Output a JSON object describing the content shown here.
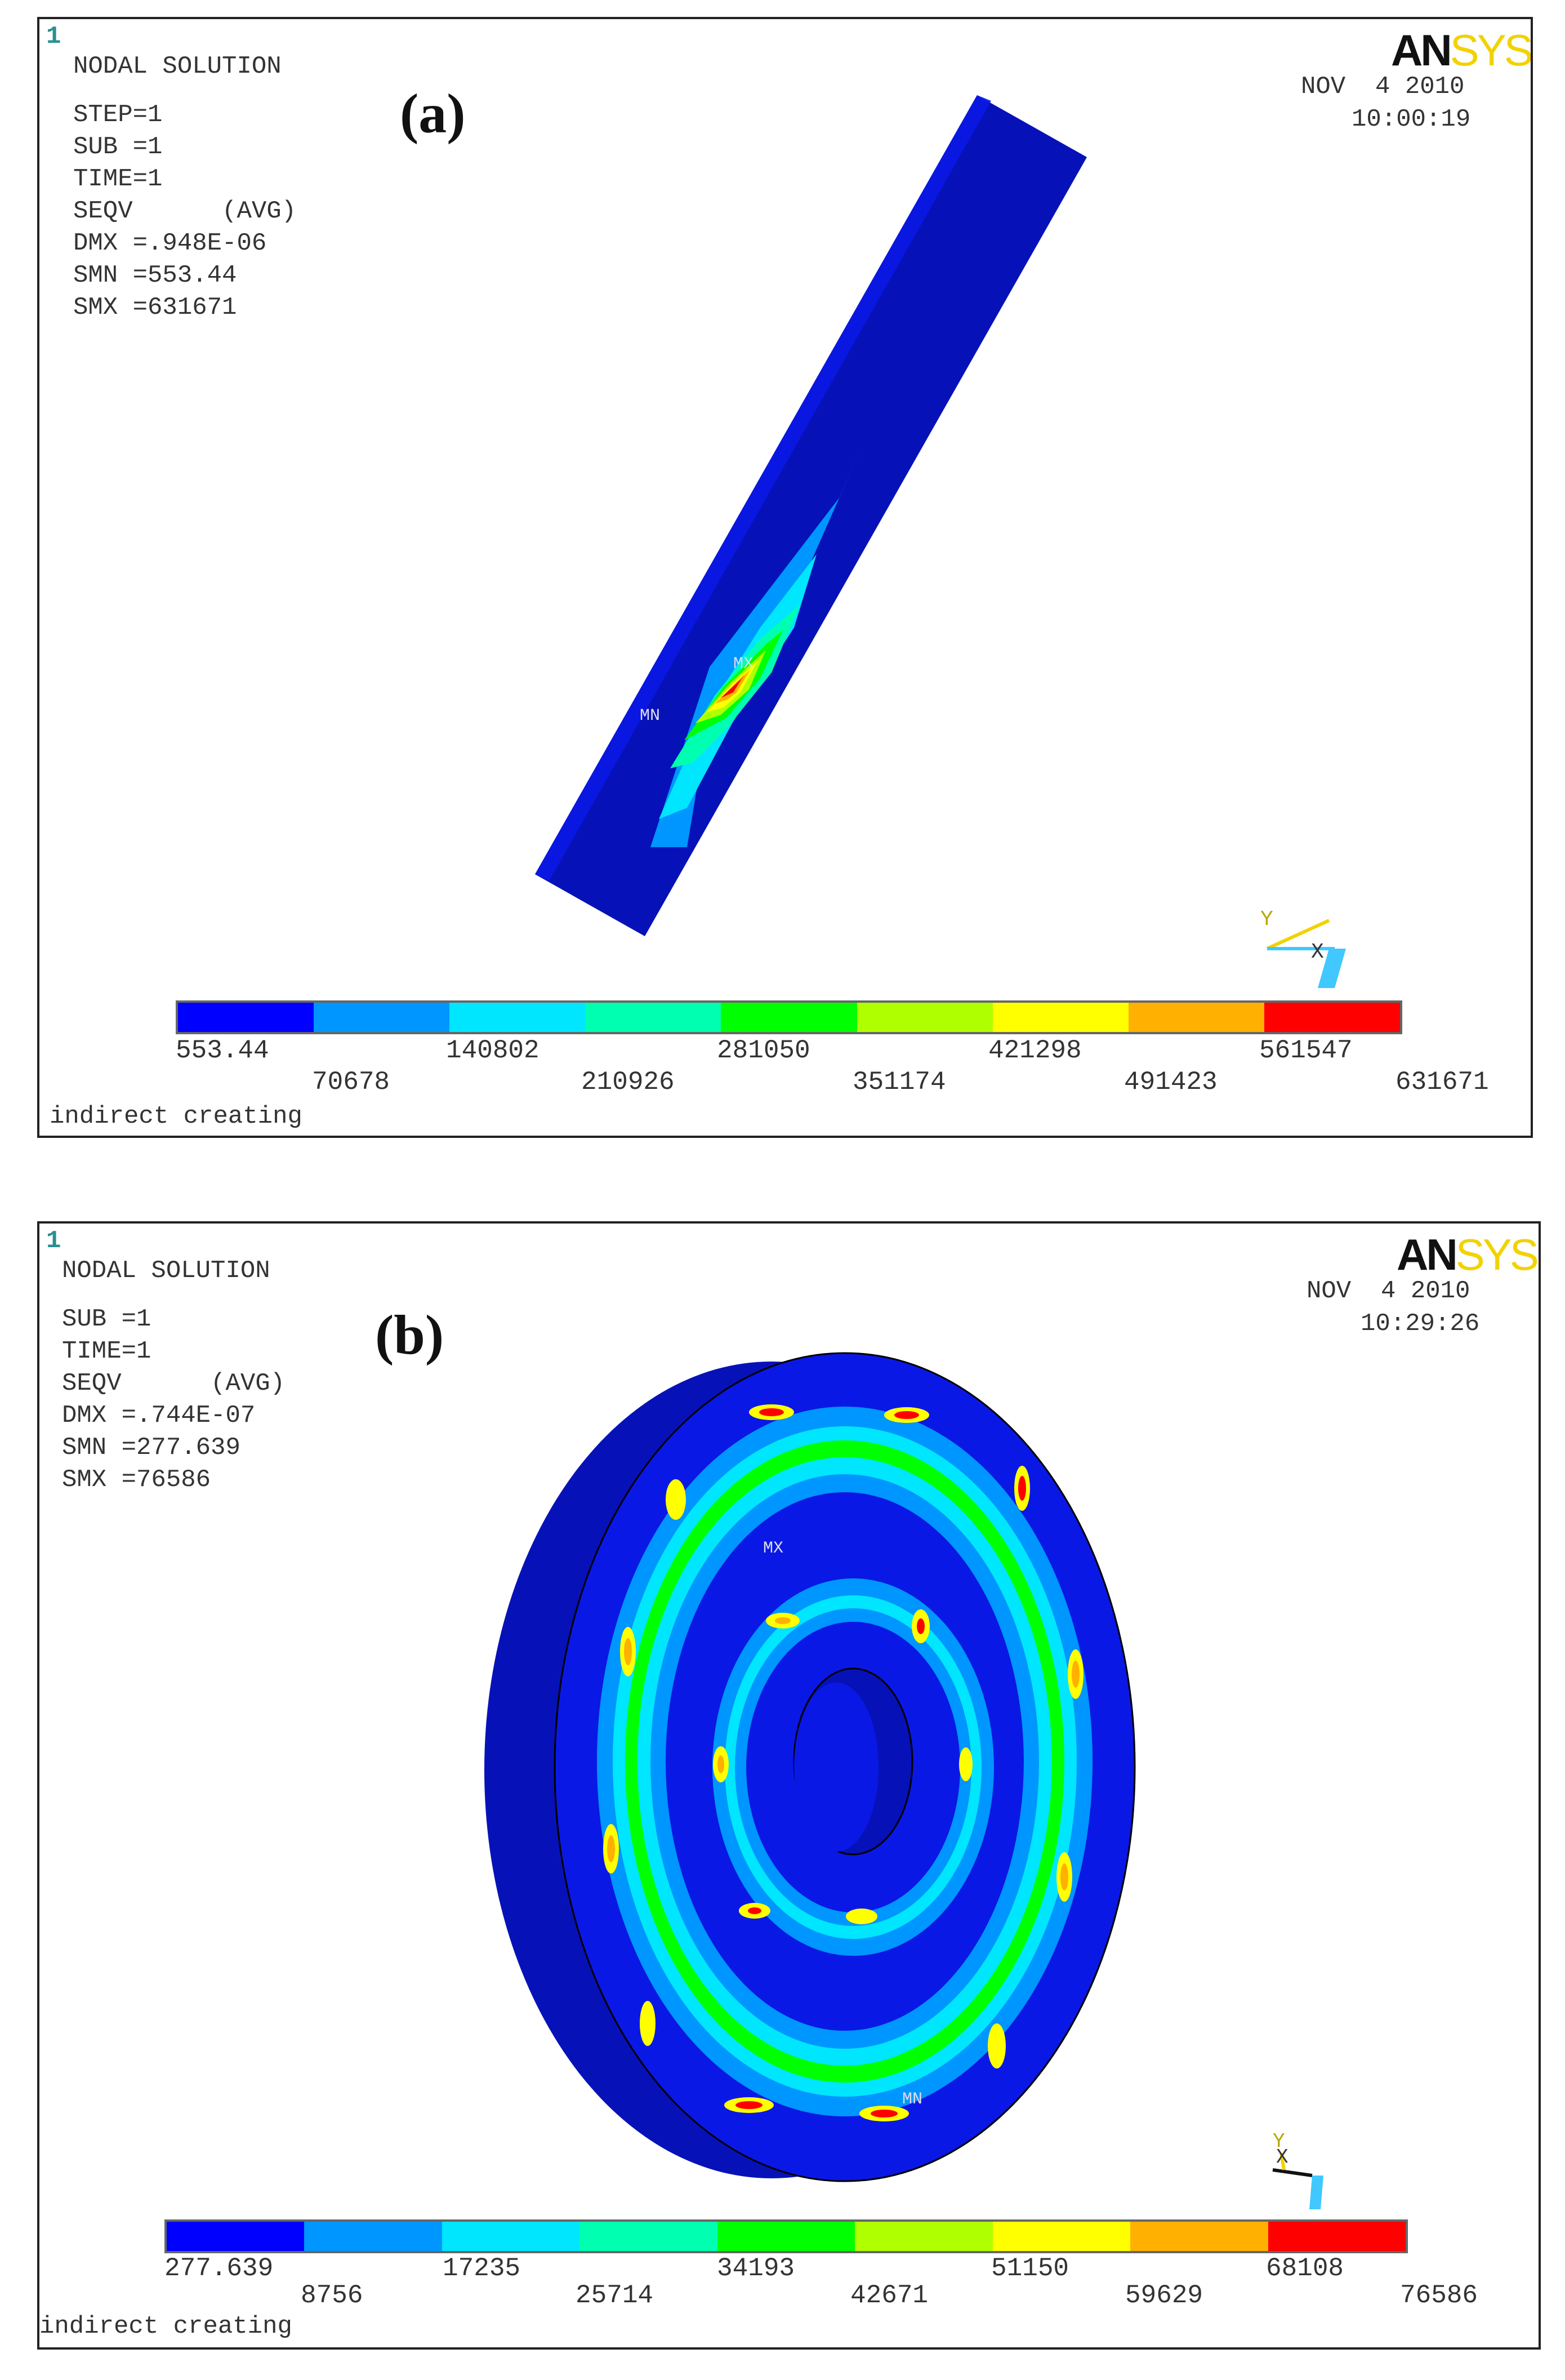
{
  "colors": {
    "contour_bands": [
      "#0000ff",
      "#0096ff",
      "#00e6ff",
      "#00ffb0",
      "#00ff00",
      "#b0ff00",
      "#ffff00",
      "#ffb000",
      "#ff0000"
    ],
    "model_body": "#0a18e6",
    "model_dark": "#0612b8"
  },
  "panel_a": {
    "view_number": "1",
    "header": "NODAL SOLUTION",
    "info_lines": [
      "STEP=1",
      "SUB =1",
      "TIME=1",
      "SEQV      (AVG)",
      "DMX =.948E-06",
      "SMN =553.44",
      "SMX =631671"
    ],
    "label": "(a)",
    "logo_part1": "AN",
    "logo_part2": "SYS",
    "date": "NOV  4 2010",
    "time": "10:00:19",
    "min_marker": "MN",
    "max_marker": "MX",
    "triad_y": "Y",
    "triad_x": "X",
    "legend_upper": [
      "553.44",
      "140802",
      "281050",
      "421298",
      "561547"
    ],
    "legend_lower": [
      "70678",
      "210926",
      "351174",
      "491423",
      "631671"
    ],
    "footer": "indirect creating"
  },
  "panel_b": {
    "view_number": "1",
    "header": "NODAL SOLUTION",
    "info_lines": [
      "SUB =1",
      "TIME=1",
      "SEQV      (AVG)",
      "DMX =.744E-07",
      "SMN =277.639",
      "SMX =76586"
    ],
    "label": "(b)",
    "logo_part1": "AN",
    "logo_part2": "SYS",
    "date": "NOV  4 2010",
    "time": "10:29:26",
    "min_marker": "MN",
    "max_marker": "MX",
    "triad_y": "Y",
    "triad_x": "X",
    "legend_upper": [
      "277.639",
      "17235",
      "34193",
      "51150",
      "68108"
    ],
    "legend_lower": [
      "8756",
      "25714",
      "42671",
      "59629",
      "76586"
    ],
    "footer": "indirect creating"
  }
}
